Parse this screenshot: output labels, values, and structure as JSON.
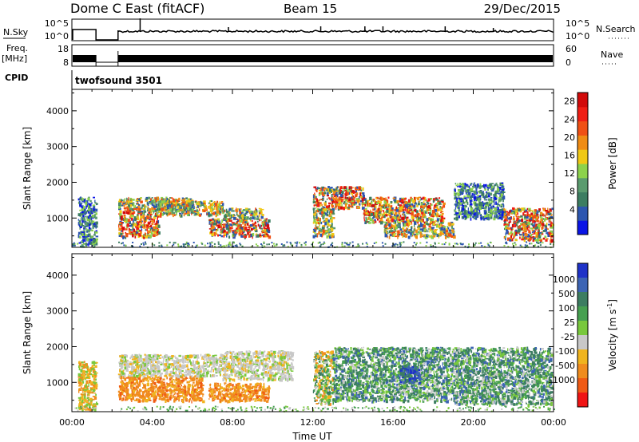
{
  "header": {
    "station": "Dome C East (fitACF)",
    "beam": "Beam 15",
    "date": "29/Dec/2015"
  },
  "noise_panel": {
    "left_label": "N.Sky",
    "left_ticks": [
      "10^5",
      "10^0"
    ],
    "right_label": "N.Search",
    "right_ticks": [
      "10^5",
      "10^0"
    ]
  },
  "freq_panel": {
    "left_label_1": "Freq.",
    "left_label_2": "[MHz]",
    "left_ticks": [
      "18",
      "8"
    ],
    "right_label": "Nave",
    "right_ticks": [
      "60",
      "0"
    ]
  },
  "cpid_panel": {
    "label": "CPID",
    "value": "twofsound 3501"
  },
  "colors": {
    "power": [
      "#0a14e6",
      "#2d56b0",
      "#3c7d61",
      "#5a9b6e",
      "#8cd24b",
      "#f0c814",
      "#f08c14",
      "#f05014",
      "#f01e14",
      "#d20a0a"
    ],
    "velocity": [
      "#1e32c8",
      "#3c64b4",
      "#3c7d61",
      "#46a050",
      "#78c83c",
      "#c8c8c8",
      "#f0b41e",
      "#f08c1e",
      "#f05a14",
      "#f01414"
    ]
  },
  "chart_data": [
    {
      "type": "heatmap",
      "name": "power",
      "ylabel": "Slant Range [km]",
      "xlabel": "",
      "x_ticks": [],
      "y_ticks": [
        "1000",
        "2000",
        "3000",
        "4000"
      ],
      "xlim": [
        0,
        24
      ],
      "ylim": [
        180,
        4600
      ],
      "colorbar": {
        "label": "Power [dB]",
        "ticks": [
          "4",
          "8",
          "12",
          "16",
          "20",
          "24",
          "28"
        ],
        "range": [
          0,
          32
        ]
      },
      "data_gaps_hours": [
        [
          1.2,
          2.3
        ]
      ],
      "scatter_regions": [
        {
          "t0": 2.3,
          "t1": 4.3,
          "r0": 500,
          "r1": 1250,
          "level": "high"
        },
        {
          "t0": 2.3,
          "t1": 6.0,
          "r0": 1250,
          "r1": 1600,
          "level": "mid"
        },
        {
          "t0": 4.3,
          "t1": 7.5,
          "r0": 1100,
          "r1": 1500,
          "level": "mid"
        },
        {
          "t0": 6.8,
          "t1": 9.8,
          "r0": 500,
          "r1": 1000,
          "level": "high"
        },
        {
          "t0": 7.5,
          "t1": 9.5,
          "r0": 1000,
          "r1": 1300,
          "level": "mid"
        },
        {
          "t0": 12.0,
          "t1": 14.5,
          "r0": 1300,
          "r1": 1900,
          "level": "high"
        },
        {
          "t0": 12.0,
          "t1": 13.0,
          "r0": 500,
          "r1": 1300,
          "level": "mid"
        },
        {
          "t0": 14.5,
          "t1": 18.5,
          "r0": 900,
          "r1": 1600,
          "level": "high"
        },
        {
          "t0": 15.5,
          "t1": 19.0,
          "r0": 500,
          "r1": 900,
          "level": "mid"
        },
        {
          "t0": 19.0,
          "t1": 21.5,
          "r0": 1000,
          "r1": 2000,
          "level": "low"
        },
        {
          "t0": 21.5,
          "t1": 23.9,
          "r0": 400,
          "r1": 1300,
          "level": "high"
        },
        {
          "t0": 0.3,
          "t1": 1.2,
          "r0": 250,
          "r1": 1600,
          "level": "low"
        }
      ]
    },
    {
      "type": "heatmap",
      "name": "velocity",
      "ylabel": "Slant Range [km]",
      "xlabel": "Time UT",
      "x_ticks": [
        "00:00",
        "04:00",
        "08:00",
        "12:00",
        "16:00",
        "20:00",
        "00:00"
      ],
      "y_ticks": [
        "1000",
        "2000",
        "3000",
        "4000"
      ],
      "xlim": [
        0,
        24
      ],
      "ylim": [
        180,
        4600
      ],
      "colorbar": {
        "label": "Velocity [m s^-1]",
        "ticks": [
          "1000",
          "500",
          "100",
          "25",
          "-25",
          "-100",
          "-500",
          "-1000"
        ],
        "range": [
          -1500,
          1500
        ]
      },
      "data_gaps_hours": [
        [
          1.2,
          2.3
        ]
      ],
      "scatter_regions": [
        {
          "t0": 2.3,
          "t1": 6.5,
          "r0": 500,
          "r1": 1200,
          "level": "neg-large"
        },
        {
          "t0": 2.3,
          "t1": 7.5,
          "r0": 1200,
          "r1": 1800,
          "level": "near-zero"
        },
        {
          "t0": 6.8,
          "t1": 9.8,
          "r0": 500,
          "r1": 1000,
          "level": "neg-large"
        },
        {
          "t0": 7.5,
          "t1": 11.0,
          "r0": 1100,
          "r1": 1900,
          "level": "near-zero"
        },
        {
          "t0": 12.0,
          "t1": 13.0,
          "r0": 400,
          "r1": 1900,
          "level": "mixed"
        },
        {
          "t0": 13.0,
          "t1": 19.0,
          "r0": 500,
          "r1": 2000,
          "level": "pos-mid"
        },
        {
          "t0": 16.3,
          "t1": 17.3,
          "r0": 1000,
          "r1": 1500,
          "level": "pos-large"
        },
        {
          "t0": 19.0,
          "t1": 23.9,
          "r0": 400,
          "r1": 2000,
          "level": "pos-mid"
        },
        {
          "t0": 0.3,
          "t1": 1.2,
          "r0": 250,
          "r1": 1600,
          "level": "neg-small"
        }
      ]
    }
  ]
}
